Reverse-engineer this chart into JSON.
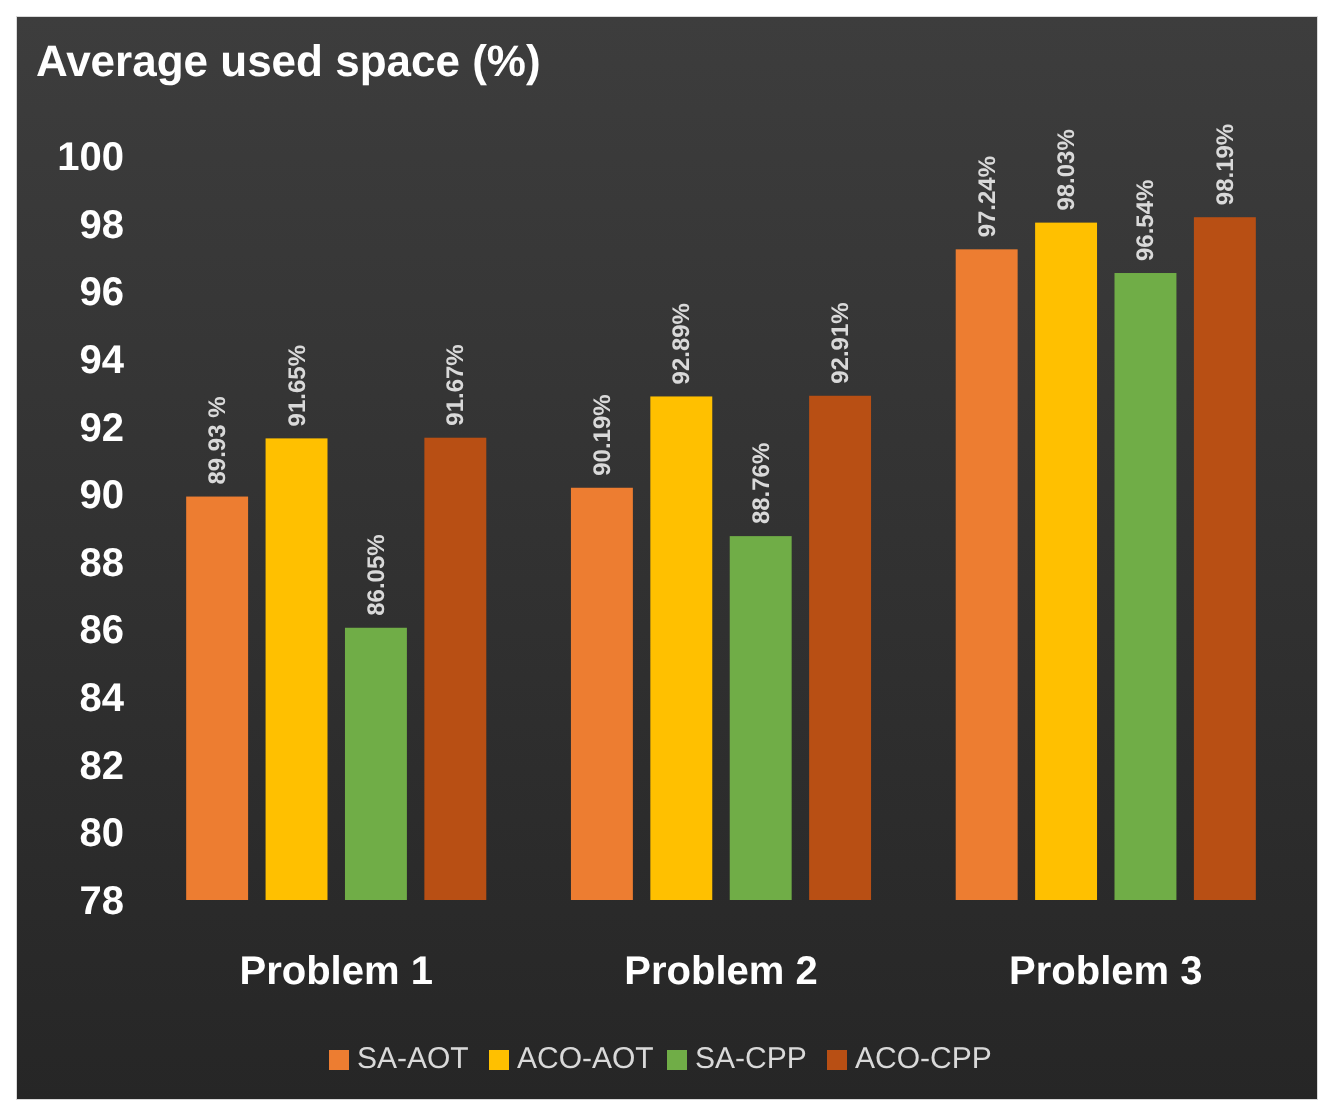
{
  "chart_data": {
    "type": "bar",
    "title": "Average used space (%)",
    "categories": [
      "Problem 1",
      "Problem 2",
      "Problem 3"
    ],
    "series": [
      {
        "name": "SA-AOT",
        "color": "#ed7d31",
        "values": [
          89.93,
          90.19,
          97.24
        ],
        "value_labels": [
          "89.93 %",
          "90.19%",
          "97.24%"
        ]
      },
      {
        "name": "ACO-AOT",
        "color": "#ffc000",
        "values": [
          91.65,
          92.89,
          98.03
        ],
        "value_labels": [
          "91.65%",
          "92.89%",
          "98.03%"
        ]
      },
      {
        "name": "SA-CPP",
        "color": "#70ad47",
        "values": [
          86.05,
          88.76,
          96.54
        ],
        "value_labels": [
          "86.05%",
          "88.76%",
          "96.54%"
        ]
      },
      {
        "name": "ACO-CPP",
        "color": "#b84f14",
        "values": [
          91.67,
          92.91,
          98.19
        ],
        "value_labels": [
          "91.67%",
          "92.91%",
          "98.19%"
        ]
      }
    ],
    "ylim": [
      78,
      100
    ],
    "yticks": [
      78,
      80,
      82,
      84,
      86,
      88,
      90,
      92,
      94,
      96,
      98,
      100
    ],
    "legend": "bottom"
  }
}
